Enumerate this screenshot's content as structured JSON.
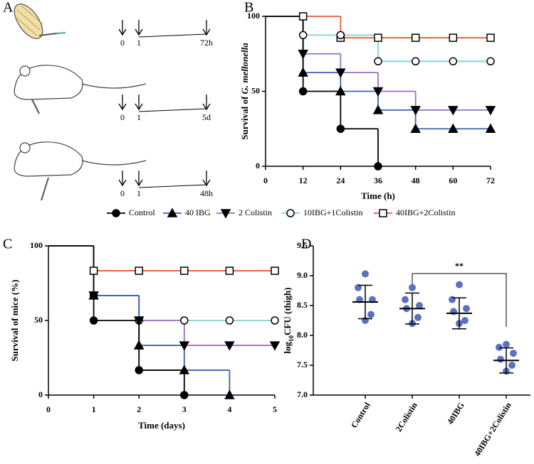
{
  "panel_labels": [
    "A",
    "B",
    "C",
    "D"
  ],
  "panel_a": {
    "timelines": [
      [
        "0",
        "1",
        "72h"
      ],
      [
        "0",
        "1",
        "5d"
      ],
      [
        "0",
        "1",
        "48h"
      ]
    ]
  },
  "chart_data": [
    {
      "type": "line",
      "step": true,
      "xlabel": "Time (h)",
      "ylabel": [
        "Survival of ",
        "G. mellonella"
      ],
      "xlim": [
        0,
        72
      ],
      "xticks": [
        0,
        12,
        24,
        36,
        48,
        60,
        72
      ],
      "ylim": [
        0,
        100
      ],
      "yticks": [
        0,
        50,
        100
      ],
      "legend": "bottom",
      "series": [
        {
          "name": "Control",
          "color": "#000000",
          "marker": "circle",
          "x": [
            0,
            12,
            24,
            36
          ],
          "values": [
            100,
            50,
            25,
            0
          ]
        },
        {
          "name": "40 IBG",
          "color": "#3f5fb5",
          "marker": "triangle-up",
          "x": [
            0,
            12,
            24,
            36,
            48,
            60,
            72
          ],
          "values": [
            100,
            62.5,
            50,
            37.5,
            25,
            25,
            25
          ]
        },
        {
          "name": "2 Colistin",
          "color": "#9b6fc2",
          "marker": "triangle-down",
          "x": [
            0,
            12,
            24,
            36,
            48,
            60,
            72
          ],
          "values": [
            100,
            75,
            62.5,
            50,
            37.5,
            37.5,
            37.5
          ]
        },
        {
          "name": "10IBG+1Colistin",
          "color": "#7fd4cf",
          "marker": "circle-open",
          "x": [
            0,
            12,
            24,
            36,
            48,
            60,
            72
          ],
          "values": [
            100,
            87.5,
            87.5,
            70,
            70,
            70,
            70
          ]
        },
        {
          "name": "40IBG+2Colistin",
          "color": "#e8593a",
          "marker": "square-open",
          "x": [
            0,
            12,
            24,
            36,
            48,
            60,
            72
          ],
          "values": [
            100,
            100,
            85.7,
            85.7,
            85.7,
            85.7,
            85.7
          ]
        }
      ]
    },
    {
      "type": "line",
      "step": true,
      "xlabel": "Time (days)",
      "ylabel": [
        "Survival of mice (%)"
      ],
      "xlim": [
        0,
        5
      ],
      "xticks": [
        0,
        1,
        2,
        3,
        4,
        5
      ],
      "ylim": [
        0,
        100
      ],
      "yticks": [
        0,
        50,
        100
      ],
      "series": [
        {
          "color": "#000000",
          "marker": "circle",
          "x": [
            0,
            1,
            2,
            3
          ],
          "values": [
            100,
            50,
            16.7,
            0
          ]
        },
        {
          "color": "#3f5fb5",
          "marker": "triangle-up",
          "x": [
            0,
            1,
            2,
            3,
            4
          ],
          "values": [
            100,
            66.7,
            33.3,
            16.7,
            0
          ]
        },
        {
          "color": "#9b6fc2",
          "marker": "triangle-down",
          "x": [
            0,
            1,
            2,
            3,
            4,
            5
          ],
          "values": [
            100,
            66.7,
            50,
            33.3,
            33.3,
            33.3
          ]
        },
        {
          "color": "#7fd4cf",
          "marker": "circle-open",
          "x": [
            0,
            1,
            2,
            3,
            4,
            5
          ],
          "values": [
            100,
            66.7,
            50,
            50,
            50,
            50
          ]
        },
        {
          "color": "#e8593a",
          "marker": "square-open",
          "x": [
            0,
            1,
            2,
            3,
            4,
            5
          ],
          "values": [
            100,
            83.3,
            83.3,
            83.3,
            83.3,
            83.3
          ]
        }
      ]
    },
    {
      "type": "scatter",
      "ylabel": [
        "log",
        "10",
        "CFU (thigh)"
      ],
      "categories": [
        "Control",
        "2Colistin",
        "40IBG",
        "40IBG+2Colistin"
      ],
      "points": [
        [
          9.03,
          8.8,
          8.6,
          8.6,
          8.35,
          8.25
        ],
        [
          8.8,
          8.6,
          8.5,
          8.45,
          8.3,
          8.2
        ],
        [
          8.85,
          8.6,
          8.45,
          8.4,
          8.25,
          8.2
        ],
        [
          7.85,
          7.8,
          7.7,
          7.6,
          7.5,
          7.4
        ]
      ],
      "means": [
        8.56,
        8.45,
        8.37,
        7.58
      ],
      "sd": [
        0.28,
        0.26,
        0.26,
        0.21
      ],
      "color": "#5b72c0",
      "significance": "**",
      "ylim": [
        7,
        9.5
      ],
      "yticks": [
        {
          "value": 7,
          "label": "7.0"
        },
        {
          "value": 7.5,
          "label": "7.5"
        },
        {
          "value": 8,
          "label": "8.0"
        },
        {
          "value": 8.5,
          "label": "8.5"
        },
        {
          "value": 9,
          "label": "9.0"
        },
        {
          "value": 9.5,
          "label": "9.5"
        }
      ]
    }
  ]
}
